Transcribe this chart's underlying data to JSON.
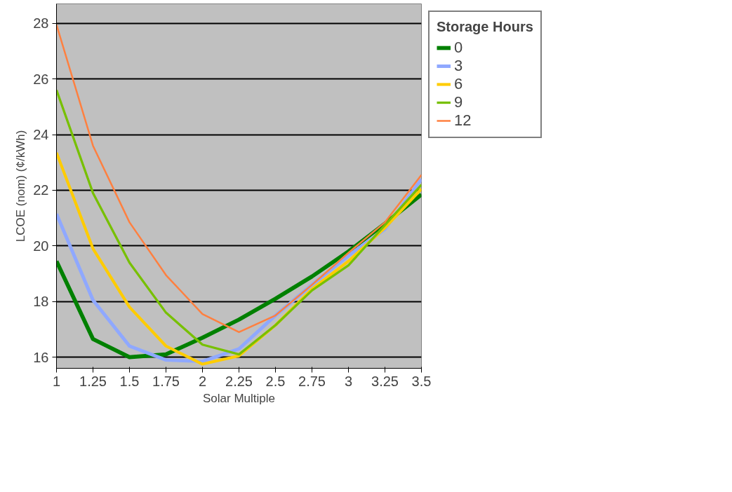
{
  "chart_data": {
    "type": "line",
    "xlabel": "Solar Multiple",
    "ylabel": "LCOE (nom) (¢/kWh)",
    "legend_title": "Storage Hours",
    "x": [
      1,
      1.25,
      1.5,
      1.75,
      2,
      2.25,
      2.5,
      2.75,
      3,
      3.25,
      3.5
    ],
    "series": [
      {
        "name": "0",
        "color": "#008000",
        "values": [
          19.45,
          16.65,
          16.0,
          16.1,
          16.7,
          17.35,
          18.1,
          18.9,
          19.8,
          20.8,
          21.85
        ]
      },
      {
        "name": "3",
        "color": "#8fa8ff",
        "values": [
          21.15,
          18.05,
          16.4,
          15.9,
          15.85,
          16.3,
          17.5,
          18.6,
          19.65,
          20.6,
          22.4
        ]
      },
      {
        "name": "6",
        "color": "#ffcc00",
        "values": [
          23.35,
          19.9,
          17.8,
          16.4,
          15.75,
          16.05,
          17.15,
          18.45,
          19.45,
          20.65,
          22.05
        ]
      },
      {
        "name": "9",
        "color": "#77c000",
        "values": [
          25.6,
          21.9,
          19.4,
          17.6,
          16.45,
          16.1,
          17.15,
          18.4,
          19.3,
          20.75,
          22.2
        ]
      },
      {
        "name": "12",
        "color": "#ff8040",
        "values": [
          27.95,
          23.6,
          20.85,
          18.95,
          17.55,
          16.9,
          17.5,
          18.6,
          19.75,
          20.85,
          22.55
        ]
      }
    ],
    "xlim": [
      1,
      3.5
    ],
    "xticks": [
      1,
      1.25,
      1.5,
      1.75,
      2,
      2.25,
      2.5,
      2.75,
      3,
      3.25,
      3.5
    ],
    "ylim": [
      15.6,
      28.7
    ],
    "yticks": [
      16,
      18,
      20,
      22,
      24,
      26,
      28
    ],
    "grid": "y",
    "legend": "right",
    "marker": "none",
    "line_style": "solid"
  }
}
